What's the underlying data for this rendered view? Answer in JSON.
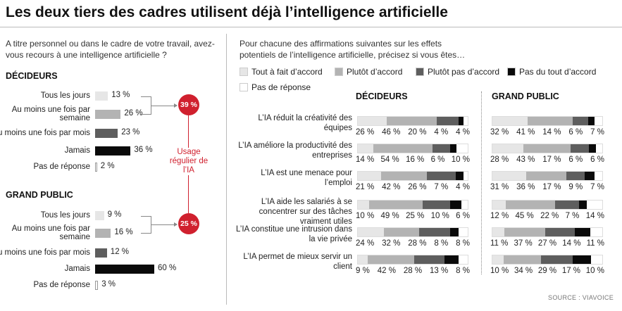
{
  "title": "Les deux tiers des cadres utilisent déjà l’intelligence artificielle",
  "colors": {
    "tout_a_fait": "#e6e6e6",
    "plutot": "#b3b3b3",
    "plutot_pas": "#5e5e5e",
    "pas_du_tout": "#0a0a0a",
    "pas_de_reponse": "#ffffff",
    "accent": "#d0202e"
  },
  "chart_data": [
    {
      "type": "bar",
      "orientation": "horizontal",
      "question": "A titre personnel ou dans le cadre de votre travail, avez-vous recours à une intelligence artificielle ?",
      "categories": [
        "Tous les jours",
        "Au moins une fois par semaine",
        "Au moins une fois par mois",
        "Jamais",
        "Pas de réponse"
      ],
      "groups": [
        {
          "name": "DÉCIDEURS",
          "values": [
            13,
            26,
            23,
            36,
            2
          ],
          "labels": [
            "13 %",
            "26 %",
            "23 %",
            "36 %",
            "2 %"
          ],
          "regular_usage": "39 %"
        },
        {
          "name": "GRAND PUBLIC",
          "values": [
            9,
            16,
            12,
            60,
            3
          ],
          "labels": [
            "9 %",
            "16 %",
            "12 %",
            "60 %",
            "3 %"
          ],
          "regular_usage": "25 %"
        }
      ],
      "bar_colors": [
        "#e6e6e6",
        "#b3b3b3",
        "#5e5e5e",
        "#0a0a0a",
        "#ffffff"
      ],
      "annotation": "Usage régulier de l’IA"
    },
    {
      "type": "bar",
      "stacked": true,
      "orientation": "horizontal",
      "question": "Pour chacune des affirmations suivantes sur les effets potentiels de l’intelligence artificielle, précisez si vous êtes…",
      "legend": [
        "Tout à fait d’accord",
        "Plutôt d’accord",
        "Plutôt pas d’accord",
        "Pas du tout d’accord",
        "Pas de réponse"
      ],
      "categories": [
        "L’IA réduit la créativité des équipes",
        "L’IA améliore la productivité des entreprises",
        "L’IA est une menace pour l’emploi",
        "L’IA aide les salariés à se concentrer sur des tâches vraiment utiles",
        "L’IA constitue une intrusion dans la vie privée",
        "L’IA permet de mieux servir un client"
      ],
      "panels": [
        {
          "name": "DÉCIDEURS",
          "values": [
            [
              26,
              46,
              20,
              4,
              4
            ],
            [
              14,
              54,
              16,
              6,
              10
            ],
            [
              21,
              42,
              26,
              7,
              4
            ],
            [
              10,
              49,
              25,
              10,
              6
            ],
            [
              24,
              32,
              28,
              8,
              8
            ],
            [
              9,
              42,
              28,
              13,
              8
            ]
          ]
        },
        {
          "name": "GRAND PUBLIC",
          "values": [
            [
              32,
              41,
              14,
              6,
              7
            ],
            [
              28,
              43,
              17,
              6,
              6
            ],
            [
              31,
              36,
              17,
              9,
              7
            ],
            [
              12,
              45,
              22,
              7,
              14
            ],
            [
              11,
              37,
              27,
              14,
              11
            ],
            [
              10,
              34,
              29,
              17,
              10
            ]
          ]
        }
      ]
    }
  ],
  "source": "SOURCE : VIAVOICE"
}
